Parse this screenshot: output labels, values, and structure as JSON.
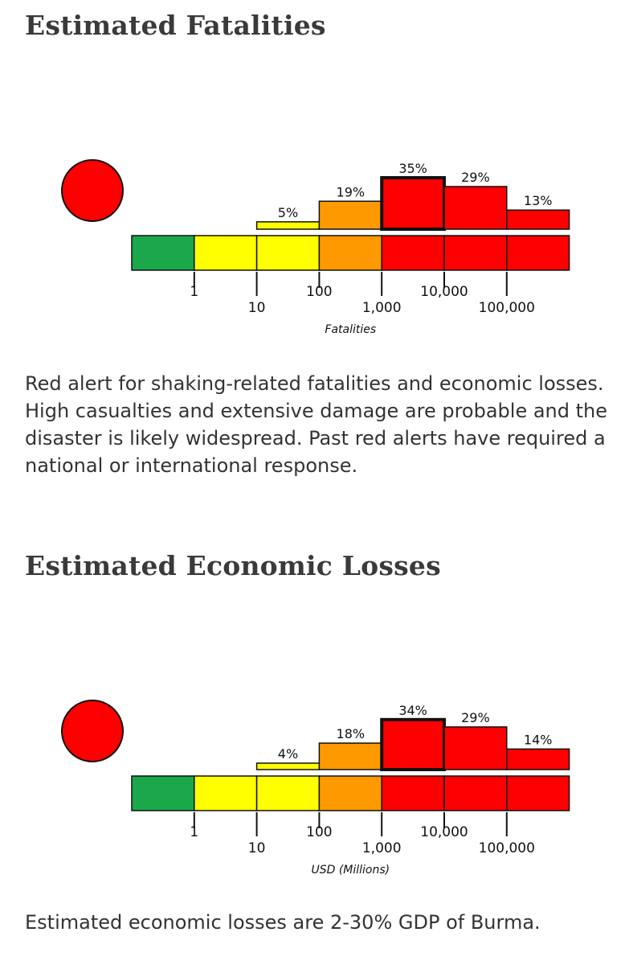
{
  "sections": [
    {
      "heading": "Estimated Fatalities",
      "paragraph": "Red alert for shaking-related fatalities and economic losses. High casualties and extensive damage are probable and the disaster is likely widespread. Past red alerts have required a national or international response."
    },
    {
      "heading": "Estimated Economic Losses",
      "paragraph": "Estimated economic losses are 2-30% GDP of Burma."
    }
  ],
  "colors": {
    "green": "#1aa84a",
    "yellow": "#ffff00",
    "orange": "#ff9900",
    "red": "#ff0000",
    "alert_red": "#ff0000"
  },
  "chart_data": [
    {
      "type": "bar",
      "alert_level": "red",
      "xlabel": "Fatalities",
      "tick_labels": [
        "1",
        "10",
        "100",
        "1,000",
        "10,000",
        "100,000"
      ],
      "categories": [
        "<1",
        "1-10",
        "10-100",
        "100-1,000",
        "1,000-10,000",
        "10,000-100,000",
        "100,000+"
      ],
      "values": [
        0,
        0,
        5,
        19,
        35,
        29,
        13
      ],
      "value_labels": [
        "",
        "",
        "5%",
        "19%",
        "35%",
        "29%",
        "13%"
      ],
      "band_colors": [
        "green",
        "yellow",
        "yellow",
        "orange",
        "red",
        "red",
        "red"
      ],
      "highlighted_index": 4
    },
    {
      "type": "bar",
      "alert_level": "red",
      "xlabel": "USD (Millions)",
      "tick_labels": [
        "1",
        "10",
        "100",
        "1,000",
        "10,000",
        "100,000"
      ],
      "categories": [
        "<1",
        "1-10",
        "10-100",
        "100-1,000",
        "1,000-10,000",
        "10,000-100,000",
        "100,000+"
      ],
      "values": [
        0,
        0,
        4,
        18,
        34,
        29,
        14
      ],
      "value_labels": [
        "",
        "",
        "4%",
        "18%",
        "34%",
        "29%",
        "14%"
      ],
      "band_colors": [
        "green",
        "yellow",
        "yellow",
        "orange",
        "red",
        "red",
        "red"
      ],
      "highlighted_index": 4
    }
  ]
}
